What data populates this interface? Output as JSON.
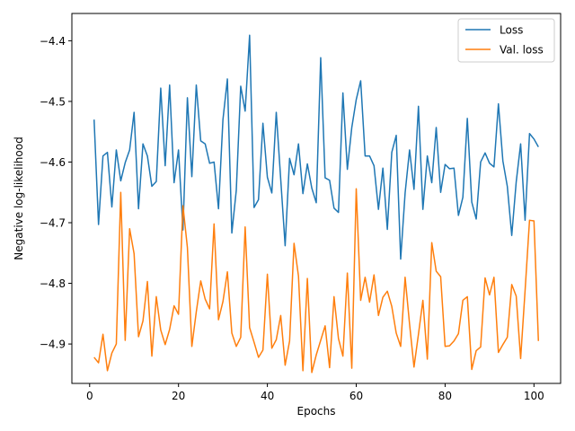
{
  "chart_data": {
    "type": "line",
    "title": "",
    "xlabel": "Epochs",
    "ylabel": "Negative log-likelihood",
    "xlim": [
      -4,
      106
    ],
    "ylim": [
      -4.965,
      -4.355
    ],
    "x_ticks": [
      0,
      20,
      40,
      60,
      80,
      100
    ],
    "y_ticks": [
      -4.9,
      -4.8,
      -4.7,
      -4.6,
      -4.5,
      -4.4
    ],
    "y_tick_labels": [
      "−4.9",
      "−4.8",
      "−4.7",
      "−4.6",
      "−4.5",
      "−4.4"
    ],
    "grid": false,
    "legend_position": "top-right",
    "series": [
      {
        "name": "Loss",
        "color": "#1f77b4",
        "values": [
          -4.53,
          -4.703,
          -4.59,
          -4.584,
          -4.674,
          -4.58,
          -4.631,
          -4.601,
          -4.58,
          -4.518,
          -4.677,
          -4.57,
          -4.59,
          -4.64,
          -4.632,
          -4.478,
          -4.606,
          -4.473,
          -4.634,
          -4.58,
          -4.712,
          -4.494,
          -4.624,
          -4.473,
          -4.565,
          -4.57,
          -4.602,
          -4.6,
          -4.677,
          -4.53,
          -4.463,
          -4.717,
          -4.647,
          -4.475,
          -4.516,
          -4.391,
          -4.675,
          -4.662,
          -4.536,
          -4.625,
          -4.651,
          -4.518,
          -4.628,
          -4.738,
          -4.594,
          -4.621,
          -4.57,
          -4.652,
          -4.603,
          -4.643,
          -4.667,
          -4.428,
          -4.626,
          -4.63,
          -4.676,
          -4.683,
          -4.486,
          -4.612,
          -4.543,
          -4.497,
          -4.466,
          -4.59,
          -4.59,
          -4.606,
          -4.678,
          -4.61,
          -4.711,
          -4.584,
          -4.556,
          -4.76,
          -4.651,
          -4.58,
          -4.645,
          -4.508,
          -4.678,
          -4.59,
          -4.634,
          -4.543,
          -4.65,
          -4.604,
          -4.611,
          -4.61,
          -4.688,
          -4.658,
          -4.528,
          -4.666,
          -4.694,
          -4.6,
          -4.585,
          -4.602,
          -4.608,
          -4.504,
          -4.598,
          -4.64,
          -4.721,
          -4.633,
          -4.57,
          -4.696,
          -4.553,
          -4.562,
          -4.575
        ]
      },
      {
        "name": "Val. loss",
        "color": "#ff7f0e",
        "values": [
          -4.922,
          -4.931,
          -4.884,
          -4.944,
          -4.915,
          -4.9,
          -4.65,
          -4.894,
          -4.71,
          -4.751,
          -4.888,
          -4.862,
          -4.797,
          -4.92,
          -4.822,
          -4.877,
          -4.901,
          -4.876,
          -4.837,
          -4.851,
          -4.672,
          -4.741,
          -4.904,
          -4.847,
          -4.796,
          -4.826,
          -4.842,
          -4.702,
          -4.86,
          -4.83,
          -4.781,
          -4.882,
          -4.904,
          -4.889,
          -4.707,
          -4.873,
          -4.897,
          -4.922,
          -4.91,
          -4.785,
          -4.907,
          -4.893,
          -4.853,
          -4.935,
          -4.895,
          -4.734,
          -4.788,
          -4.944,
          -4.792,
          -4.947,
          -4.918,
          -4.894,
          -4.87,
          -4.939,
          -4.822,
          -4.891,
          -4.92,
          -4.783,
          -4.94,
          -4.644,
          -4.828,
          -4.79,
          -4.831,
          -4.786,
          -4.853,
          -4.823,
          -4.813,
          -4.838,
          -4.882,
          -4.904,
          -4.79,
          -4.867,
          -4.938,
          -4.884,
          -4.828,
          -4.925,
          -4.733,
          -4.78,
          -4.789,
          -4.904,
          -4.903,
          -4.895,
          -4.883,
          -4.828,
          -4.822,
          -4.942,
          -4.911,
          -4.905,
          -4.791,
          -4.819,
          -4.79,
          -4.914,
          -4.901,
          -4.889,
          -4.802,
          -4.821,
          -4.924,
          -4.812,
          -4.696,
          -4.697,
          -4.895
        ]
      }
    ]
  }
}
